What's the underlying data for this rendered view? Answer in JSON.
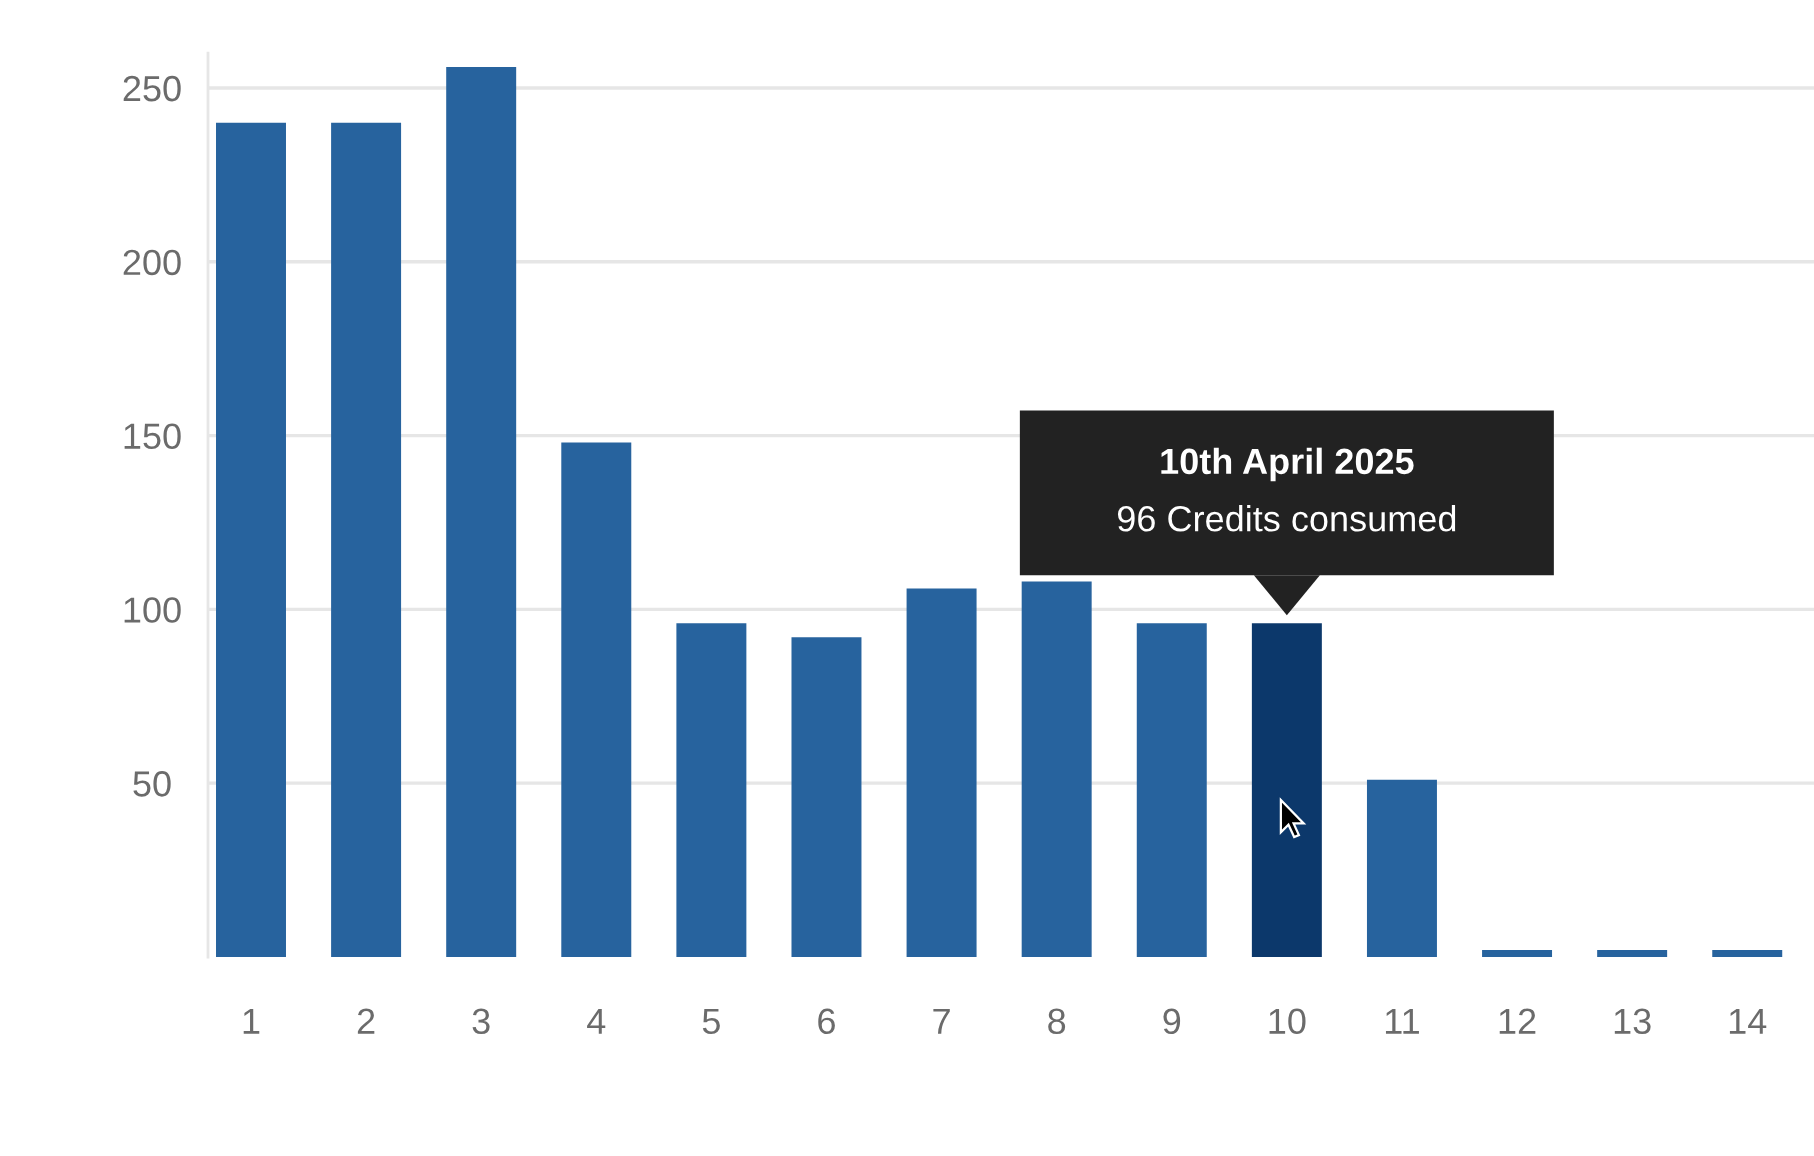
{
  "chart_data": {
    "type": "bar",
    "categories": [
      "1",
      "2",
      "3",
      "4",
      "5",
      "6",
      "7",
      "8",
      "9",
      "10",
      "11",
      "12",
      "13",
      "14"
    ],
    "values": [
      240,
      240,
      256,
      148,
      96,
      92,
      106,
      108,
      96,
      96,
      51,
      2,
      2,
      2
    ],
    "colors": [
      "#27639e",
      "#27639e",
      "#27639e",
      "#27639e",
      "#27639e",
      "#27639e",
      "#27639e",
      "#27639e",
      "#27639e",
      "#0c386b",
      "#27639e",
      "#27639e",
      "#27639e",
      "#27639e"
    ],
    "ylim": [
      0,
      260
    ],
    "yticks": [
      50,
      100,
      150,
      200,
      250
    ],
    "grid": "y",
    "annotations": [
      "10th April 2025",
      {
        "text": "96 Credits consumed",
        "x": "10",
        "y": 96
      }
    ]
  }
}
